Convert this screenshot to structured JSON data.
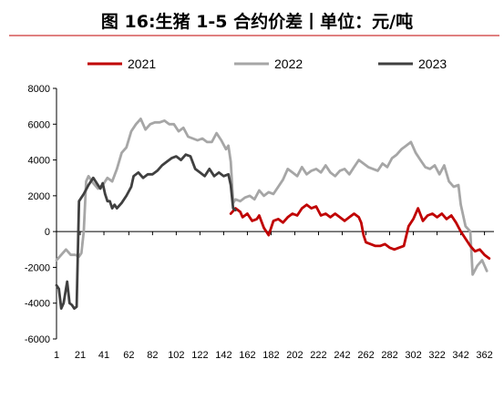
{
  "chart_data": {
    "type": "line",
    "title": "图 16:生猪 1-5 合约价差丨单位：元/吨",
    "ylim": [
      -6000,
      8000
    ],
    "yticks": [
      8000,
      6000,
      4000,
      2000,
      0,
      -2000,
      -4000,
      -6000
    ],
    "xlim": [
      1,
      370
    ],
    "xticks": [
      1,
      21,
      41,
      62,
      82,
      102,
      122,
      142,
      162,
      182,
      202,
      222,
      242,
      262,
      282,
      302,
      322,
      342,
      362
    ],
    "legend_position": "top",
    "series": [
      {
        "name": "2021",
        "color": "#c00000",
        "points": [
          [
            148,
            1000
          ],
          [
            152,
            1300
          ],
          [
            156,
            1100
          ],
          [
            158,
            800
          ],
          [
            162,
            1000
          ],
          [
            166,
            600
          ],
          [
            170,
            700
          ],
          [
            172,
            900
          ],
          [
            176,
            200
          ],
          [
            180,
            -200
          ],
          [
            184,
            600
          ],
          [
            188,
            700
          ],
          [
            192,
            500
          ],
          [
            196,
            800
          ],
          [
            200,
            1000
          ],
          [
            204,
            900
          ],
          [
            208,
            1300
          ],
          [
            212,
            1500
          ],
          [
            216,
            1300
          ],
          [
            220,
            1400
          ],
          [
            224,
            900
          ],
          [
            228,
            1000
          ],
          [
            232,
            800
          ],
          [
            236,
            1000
          ],
          [
            240,
            800
          ],
          [
            244,
            600
          ],
          [
            248,
            800
          ],
          [
            252,
            1000
          ],
          [
            256,
            800
          ],
          [
            258,
            500
          ],
          [
            260,
            -200
          ],
          [
            262,
            -600
          ],
          [
            266,
            -700
          ],
          [
            270,
            -800
          ],
          [
            274,
            -800
          ],
          [
            278,
            -700
          ],
          [
            282,
            -900
          ],
          [
            286,
            -1000
          ],
          [
            290,
            -900
          ],
          [
            294,
            -800
          ],
          [
            298,
            300
          ],
          [
            302,
            700
          ],
          [
            306,
            1300
          ],
          [
            310,
            600
          ],
          [
            314,
            900
          ],
          [
            318,
            1000
          ],
          [
            322,
            800
          ],
          [
            326,
            1000
          ],
          [
            330,
            700
          ],
          [
            334,
            900
          ],
          [
            338,
            500
          ],
          [
            342,
            0
          ],
          [
            346,
            -400
          ],
          [
            350,
            -800
          ],
          [
            354,
            -1100
          ],
          [
            358,
            -1000
          ],
          [
            362,
            -1300
          ],
          [
            366,
            -1500
          ]
        ]
      },
      {
        "name": "2022",
        "color": "#a6a6a6",
        "points": [
          [
            1,
            -1600
          ],
          [
            5,
            -1300
          ],
          [
            9,
            -1000
          ],
          [
            13,
            -1300
          ],
          [
            17,
            -1300
          ],
          [
            20,
            -1400
          ],
          [
            22,
            -1200
          ],
          [
            24,
            0
          ],
          [
            26,
            2800
          ],
          [
            28,
            3100
          ],
          [
            32,
            2700
          ],
          [
            36,
            2400
          ],
          [
            40,
            2600
          ],
          [
            44,
            3000
          ],
          [
            48,
            2800
          ],
          [
            52,
            3500
          ],
          [
            56,
            4400
          ],
          [
            60,
            4700
          ],
          [
            64,
            5600
          ],
          [
            68,
            6000
          ],
          [
            72,
            6300
          ],
          [
            76,
            5700
          ],
          [
            80,
            6000
          ],
          [
            84,
            6100
          ],
          [
            88,
            6100
          ],
          [
            92,
            6200
          ],
          [
            96,
            6000
          ],
          [
            100,
            6000
          ],
          [
            104,
            5600
          ],
          [
            108,
            5800
          ],
          [
            112,
            5300
          ],
          [
            116,
            5200
          ],
          [
            120,
            5100
          ],
          [
            124,
            5200
          ],
          [
            128,
            5000
          ],
          [
            132,
            5000
          ],
          [
            136,
            5500
          ],
          [
            140,
            5100
          ],
          [
            144,
            4600
          ],
          [
            146,
            4800
          ],
          [
            148,
            3900
          ],
          [
            150,
            1600
          ],
          [
            152,
            1800
          ],
          [
            156,
            1700
          ],
          [
            160,
            1900
          ],
          [
            164,
            2000
          ],
          [
            168,
            1800
          ],
          [
            172,
            2300
          ],
          [
            176,
            2000
          ],
          [
            180,
            2200
          ],
          [
            184,
            2100
          ],
          [
            188,
            2500
          ],
          [
            192,
            2900
          ],
          [
            196,
            3500
          ],
          [
            200,
            3300
          ],
          [
            204,
            3100
          ],
          [
            208,
            3600
          ],
          [
            212,
            3200
          ],
          [
            216,
            3400
          ],
          [
            220,
            3500
          ],
          [
            224,
            3300
          ],
          [
            228,
            3700
          ],
          [
            232,
            3300
          ],
          [
            236,
            3100
          ],
          [
            240,
            3400
          ],
          [
            244,
            3500
          ],
          [
            248,
            3200
          ],
          [
            252,
            3600
          ],
          [
            256,
            4000
          ],
          [
            260,
            3800
          ],
          [
            264,
            3600
          ],
          [
            268,
            3500
          ],
          [
            272,
            3400
          ],
          [
            276,
            3800
          ],
          [
            280,
            3600
          ],
          [
            284,
            4100
          ],
          [
            288,
            4300
          ],
          [
            292,
            4600
          ],
          [
            296,
            4800
          ],
          [
            300,
            5000
          ],
          [
            304,
            4400
          ],
          [
            308,
            4000
          ],
          [
            312,
            3600
          ],
          [
            316,
            3500
          ],
          [
            320,
            3700
          ],
          [
            324,
            3200
          ],
          [
            328,
            3700
          ],
          [
            332,
            2800
          ],
          [
            336,
            2500
          ],
          [
            340,
            2600
          ],
          [
            342,
            1500
          ],
          [
            346,
            300
          ],
          [
            350,
            0
          ],
          [
            352,
            -2400
          ],
          [
            356,
            -1900
          ],
          [
            360,
            -1600
          ],
          [
            364,
            -2200
          ]
        ]
      },
      {
        "name": "2023",
        "color": "#404040",
        "points": [
          [
            1,
            -3000
          ],
          [
            3,
            -3200
          ],
          [
            5,
            -4300
          ],
          [
            7,
            -4000
          ],
          [
            9,
            -3200
          ],
          [
            10,
            -2800
          ],
          [
            12,
            -4000
          ],
          [
            14,
            -4100
          ],
          [
            16,
            -4300
          ],
          [
            18,
            -4200
          ],
          [
            20,
            1700
          ],
          [
            24,
            2100
          ],
          [
            28,
            2600
          ],
          [
            32,
            3000
          ],
          [
            36,
            2600
          ],
          [
            38,
            2400
          ],
          [
            40,
            2700
          ],
          [
            42,
            2100
          ],
          [
            44,
            1700
          ],
          [
            46,
            1700
          ],
          [
            48,
            1300
          ],
          [
            50,
            1500
          ],
          [
            52,
            1300
          ],
          [
            56,
            1600
          ],
          [
            60,
            2000
          ],
          [
            64,
            2500
          ],
          [
            66,
            3100
          ],
          [
            70,
            3300
          ],
          [
            74,
            3000
          ],
          [
            78,
            3200
          ],
          [
            82,
            3200
          ],
          [
            86,
            3400
          ],
          [
            90,
            3700
          ],
          [
            94,
            3900
          ],
          [
            98,
            4100
          ],
          [
            102,
            4200
          ],
          [
            106,
            4000
          ],
          [
            110,
            4300
          ],
          [
            114,
            4200
          ],
          [
            118,
            3500
          ],
          [
            122,
            3300
          ],
          [
            126,
            3100
          ],
          [
            130,
            3500
          ],
          [
            134,
            3100
          ],
          [
            138,
            3300
          ],
          [
            142,
            3100
          ],
          [
            146,
            3200
          ],
          [
            148,
            2600
          ],
          [
            150,
            1300
          ],
          [
            152,
            1200
          ]
        ]
      }
    ]
  }
}
